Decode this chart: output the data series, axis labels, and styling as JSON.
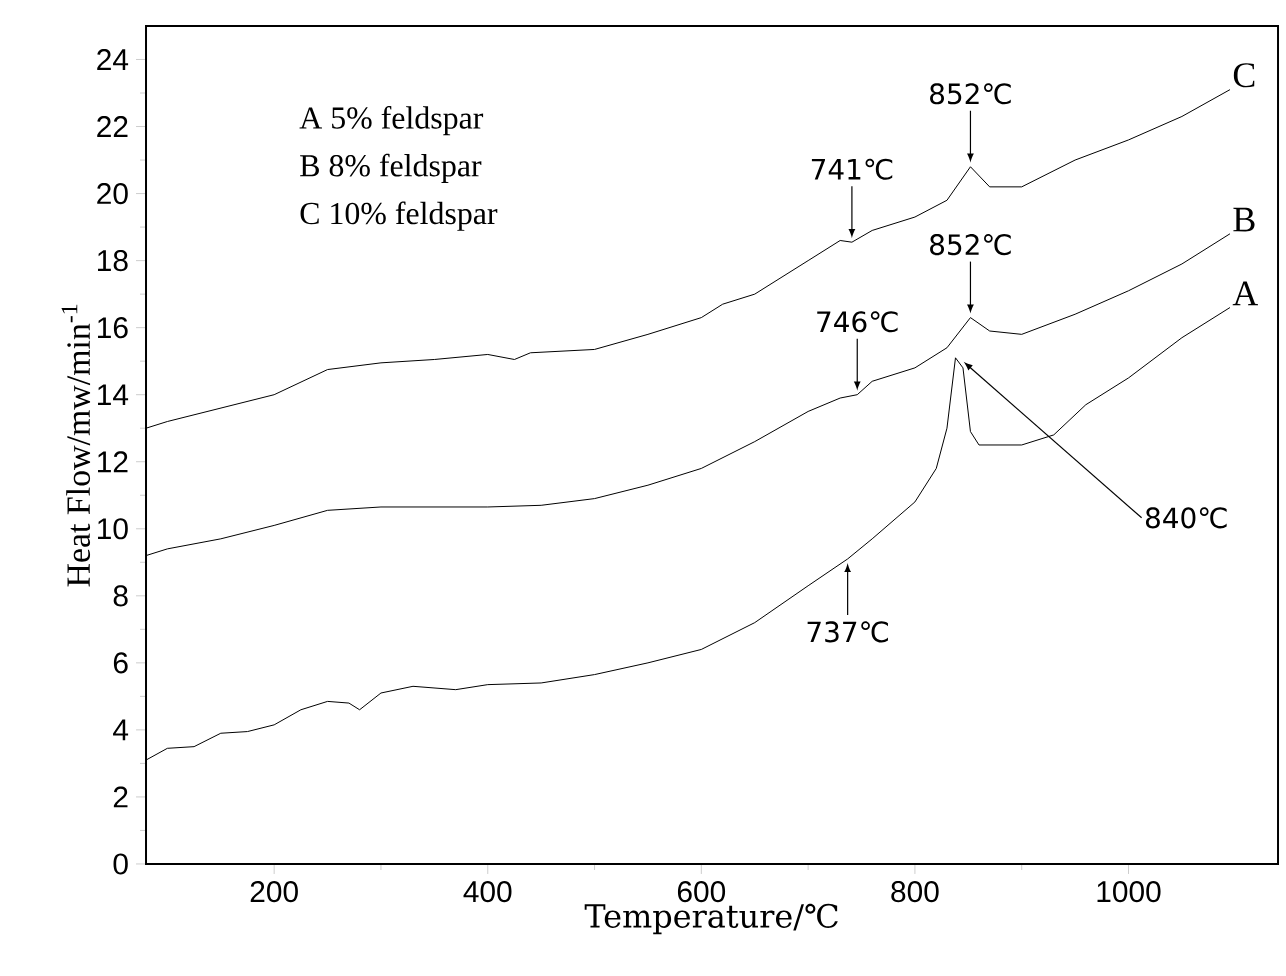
{
  "chart_data": {
    "type": "line",
    "xlabel": "Temperature/℃",
    "ylabel": "Heat Flow/mw/min$^{-1}$",
    "xlim": [
      80,
      1140
    ],
    "ylim": [
      0,
      25
    ],
    "xticks": [
      200,
      400,
      600,
      800,
      1000
    ],
    "yticks": [
      0,
      2,
      4,
      6,
      8,
      10,
      12,
      14,
      16,
      18,
      20,
      22,
      24
    ],
    "grid": false,
    "legend": false,
    "marker": "none",
    "line_style": "solid",
    "series": [
      {
        "name": "A",
        "color": "#000000",
        "x": [
          80,
          100,
          125,
          150,
          175,
          200,
          225,
          250,
          270,
          280,
          300,
          330,
          370,
          400,
          450,
          500,
          550,
          600,
          650,
          700,
          737,
          760,
          800,
          820,
          830,
          838,
          845,
          852,
          860,
          900,
          930,
          960,
          1000,
          1050,
          1095
        ],
        "values": [
          3.1,
          3.45,
          3.5,
          3.9,
          3.95,
          4.15,
          4.6,
          4.85,
          4.8,
          4.6,
          5.1,
          5.3,
          5.2,
          5.35,
          5.4,
          5.65,
          6.0,
          6.4,
          7.2,
          8.3,
          9.1,
          9.7,
          10.8,
          11.8,
          13.0,
          15.1,
          14.8,
          12.9,
          12.5,
          12.5,
          12.8,
          13.7,
          14.5,
          15.7,
          16.6
        ]
      },
      {
        "name": "B",
        "color": "#000000",
        "x": [
          80,
          100,
          150,
          200,
          250,
          300,
          400,
          450,
          500,
          550,
          600,
          650,
          700,
          730,
          746,
          760,
          800,
          830,
          852,
          870,
          900,
          950,
          1000,
          1050,
          1095
        ],
        "values": [
          9.2,
          9.4,
          9.7,
          10.1,
          10.55,
          10.65,
          10.65,
          10.7,
          10.9,
          11.3,
          11.8,
          12.6,
          13.5,
          13.9,
          14.0,
          14.4,
          14.8,
          15.4,
          16.3,
          15.9,
          15.8,
          16.4,
          17.1,
          17.9,
          18.8
        ]
      },
      {
        "name": "C",
        "color": "#000000",
        "x": [
          80,
          100,
          200,
          250,
          300,
          350,
          400,
          425,
          440,
          500,
          550,
          600,
          620,
          650,
          700,
          730,
          741,
          760,
          800,
          830,
          852,
          870,
          900,
          950,
          1000,
          1050,
          1095
        ],
        "values": [
          13.0,
          13.2,
          14.0,
          14.75,
          14.95,
          15.05,
          15.2,
          15.05,
          15.25,
          15.35,
          15.8,
          16.3,
          16.7,
          17.0,
          18.0,
          18.6,
          18.55,
          18.9,
          19.3,
          19.8,
          20.8,
          20.2,
          20.2,
          21.0,
          21.6,
          22.3,
          23.1
        ]
      }
    ],
    "annotations": [
      "A 5%  feldspar",
      "B 8%  feldspar",
      "C 10% feldspar",
      {
        "text": "852℃",
        "x": 852,
        "y": 20.8
      },
      {
        "text": "741℃",
        "x": 741,
        "y": 18.55
      },
      {
        "text": "852℃",
        "x": 852,
        "y": 16.3
      },
      {
        "text": "746℃",
        "x": 746,
        "y": 14.0
      },
      {
        "text": "840℃",
        "x": 840,
        "y": 15.1
      },
      {
        "text": "737℃",
        "x": 737,
        "y": 9.1
      }
    ]
  }
}
